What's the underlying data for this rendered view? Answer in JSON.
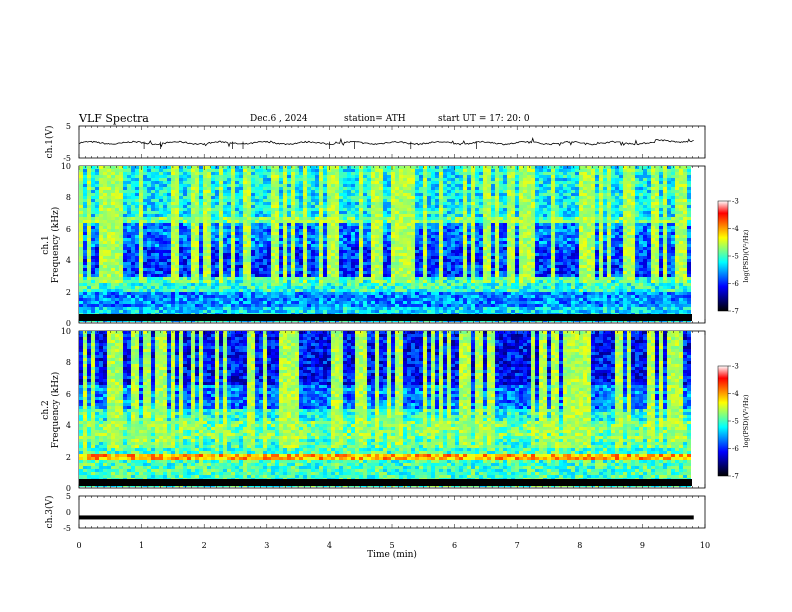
{
  "header": {
    "title": "VLF  Spectra",
    "date": "Dec.6   , 2024",
    "station": "station= ATH",
    "start_ut": "start  UT  =    17: 20: 0"
  },
  "chart_data": [
    {
      "type": "line",
      "name": "ch1-waveform",
      "ylabel": "ch.1(V)",
      "xlim": [
        0,
        10
      ],
      "ylim": [
        -5,
        5
      ],
      "yticks": [
        5,
        -5
      ],
      "baseline": -0.3
    },
    {
      "type": "heatmap",
      "name": "ch1-spectrogram",
      "ylabel_line1": "ch.1",
      "ylabel_line2": "Frequency  (kHz)",
      "xlim": [
        0,
        9.85
      ],
      "ylim": [
        0,
        10
      ],
      "yticks": [
        0,
        2,
        4,
        6,
        8,
        10
      ],
      "colorbar": {
        "label": "log(PSD)(V²/Hz)",
        "range": [
          -7,
          -3
        ],
        "ticks": [
          -3,
          -4,
          -5,
          -6,
          -7
        ]
      }
    },
    {
      "type": "heatmap",
      "name": "ch2-spectrogram",
      "ylabel_line1": "ch.2",
      "ylabel_line2": "Frequency  (kHz)",
      "xlim": [
        0,
        9.85
      ],
      "ylim": [
        0,
        10
      ],
      "yticks": [
        0,
        2,
        4,
        6,
        8,
        10
      ],
      "colorbar": {
        "label": "log(PSD)(V²/Hz)",
        "range": [
          -7,
          -3
        ],
        "ticks": [
          -3,
          -4,
          -5,
          -6,
          -7
        ]
      }
    },
    {
      "type": "line",
      "name": "ch3-waveform",
      "ylabel": "ch.3(V)",
      "xlim": [
        0,
        10
      ],
      "ylim": [
        -5,
        5
      ],
      "yticks": [
        5,
        0,
        -5
      ],
      "baseline": -1.7
    }
  ],
  "xaxis": {
    "label": "Time  (min)",
    "ticks": [
      "0",
      "1",
      "2",
      "3",
      "4",
      "5",
      "6",
      "7",
      "8",
      "9",
      "10"
    ]
  },
  "colors": {
    "jet": [
      "#000000",
      "#00007f",
      "#0000ff",
      "#0080ff",
      "#00ffff",
      "#80ff80",
      "#ffff00",
      "#ff8000",
      "#ff0000",
      "#ffffff"
    ]
  }
}
